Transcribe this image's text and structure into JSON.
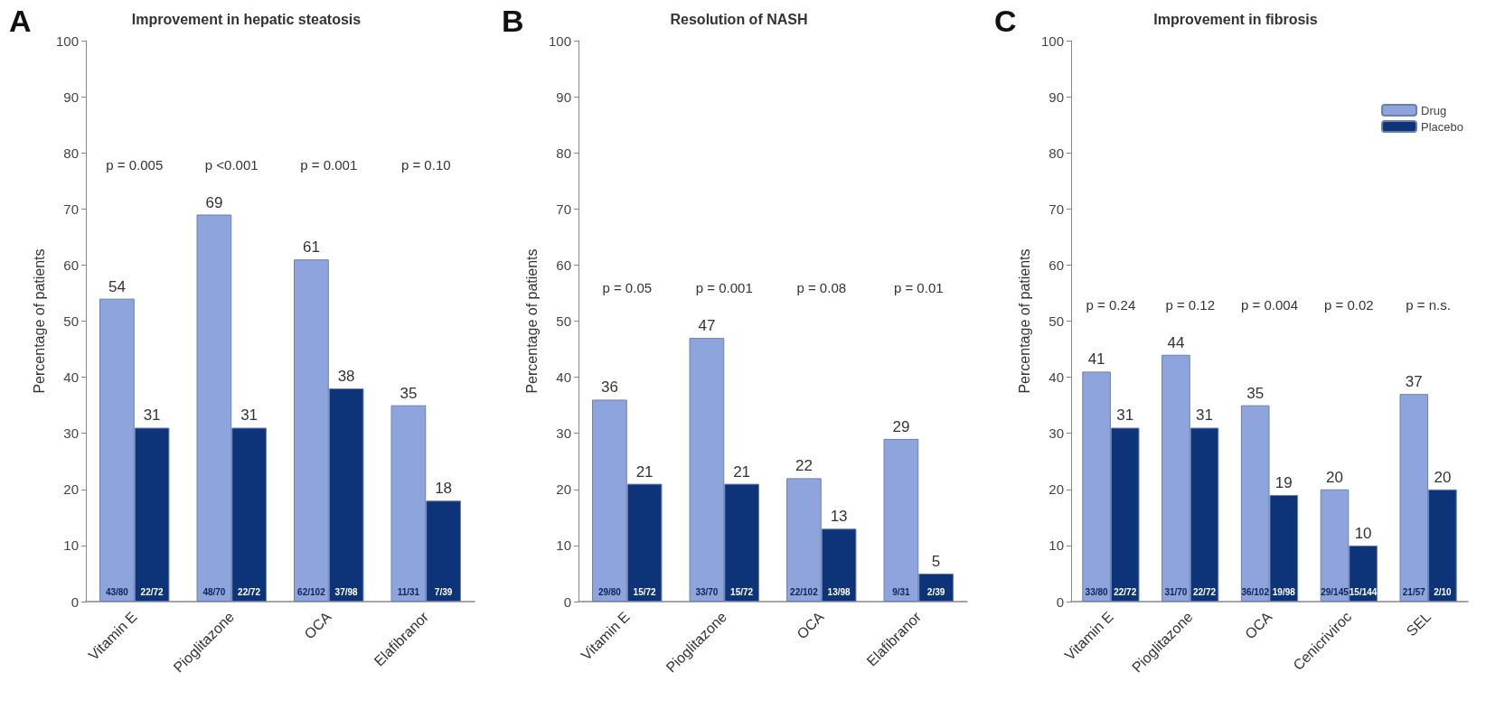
{
  "chart_data": [
    {
      "type": "bar",
      "title": "Improvement in hepatic steatosis",
      "ylabel": "Percentage of patients",
      "categories": [
        "Vitamin E",
        "Pioglitazone",
        "OCA",
        "Elafibranor"
      ],
      "series": [
        {
          "color": "#8da5dc",
          "values": [
            54,
            69,
            61,
            35
          ]
        },
        {
          "color": "#0d3478",
          "values": [
            31,
            31,
            38,
            18
          ]
        }
      ],
      "ylim": [
        0,
        100
      ],
      "yticks": [
        0,
        10,
        20,
        30,
        40,
        50,
        60,
        70,
        80,
        90,
        100
      ],
      "grid": false,
      "legend": false,
      "data_labels": true,
      "annotations": [
        "A",
        "p = 0.005",
        "p <0.001",
        "p = 0.001",
        "p = 0.10",
        "43/80",
        "22/72",
        "48/70",
        "22/72",
        "62/102",
        "37/98",
        "11/31",
        "7/39"
      ]
    },
    {
      "type": "bar",
      "title": "Resolution of NASH",
      "ylabel": "Percentage of patients",
      "categories": [
        "Vitamin E",
        "Pioglitazone",
        "OCA",
        "Elafibranor"
      ],
      "series": [
        {
          "color": "#8da5dc",
          "values": [
            36,
            47,
            22,
            29
          ]
        },
        {
          "color": "#0d3478",
          "values": [
            21,
            21,
            13,
            5
          ]
        }
      ],
      "ylim": [
        0,
        100
      ],
      "yticks": [
        0,
        10,
        20,
        30,
        40,
        50,
        60,
        70,
        80,
        90,
        100
      ],
      "grid": false,
      "legend": false,
      "data_labels": true,
      "annotations": [
        "B",
        "p = 0.05",
        "p = 0.001",
        "p = 0.08",
        "p = 0.01",
        "29/80",
        "15/72",
        "33/70",
        "15/72",
        "22/102",
        "13/98",
        "9/31",
        "2/39"
      ]
    },
    {
      "type": "bar",
      "title": "Improvement in fibrosis",
      "ylabel": "Percentage of patients",
      "categories": [
        "Vitamin E",
        "Pioglitazone",
        "OCA",
        "Cenicriviroc",
        "SEL"
      ],
      "series": [
        {
          "name": "Drug",
          "color": "#8da5dc",
          "values": [
            41,
            44,
            35,
            20,
            37
          ]
        },
        {
          "name": "Placebo",
          "color": "#0d3478",
          "values": [
            31,
            31,
            19,
            10,
            20
          ]
        }
      ],
      "ylim": [
        0,
        100
      ],
      "yticks": [
        0,
        10,
        20,
        30,
        40,
        50,
        60,
        70,
        80,
        90,
        100
      ],
      "grid": false,
      "legend": "top right",
      "data_labels": true,
      "annotations": [
        "C",
        "p = 0.24",
        "p = 0.12",
        "p = 0.004",
        "p = 0.02",
        "p = n.s.",
        "33/80",
        "22/72",
        "31/70",
        "22/72",
        "36/102",
        "19/98",
        "29/145",
        "15/144",
        "21/57",
        "2/10"
      ]
    }
  ]
}
